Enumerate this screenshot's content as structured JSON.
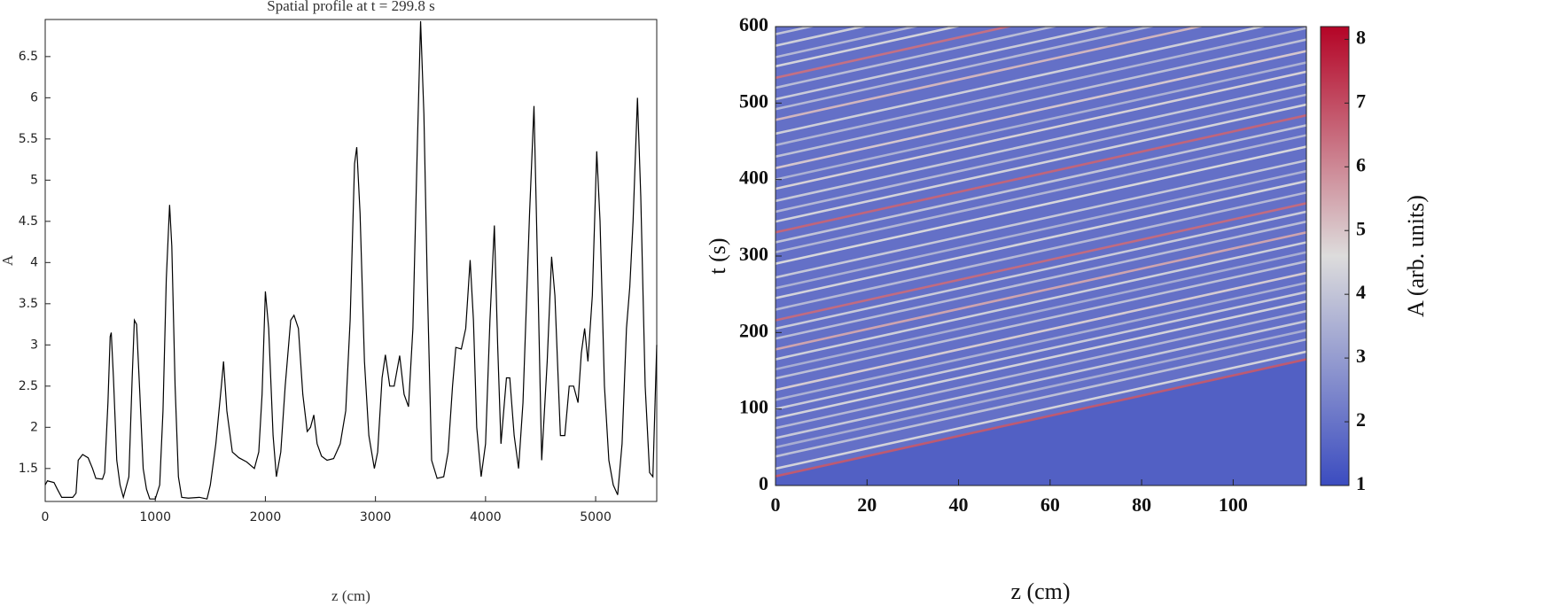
{
  "chart_data": [
    {
      "type": "line",
      "title": "Spatial profile at t = 299.8 s",
      "x_label": "z (cm)",
      "y_label": "A",
      "color": "#000000",
      "x": [
        0,
        20,
        80,
        110,
        150,
        250,
        280,
        300,
        340,
        390,
        430,
        460,
        520,
        540,
        570,
        590,
        600,
        620,
        650,
        680,
        710,
        760,
        790,
        810,
        830,
        860,
        890,
        920,
        950,
        1000,
        1040,
        1070,
        1100,
        1130,
        1150,
        1180,
        1210,
        1240,
        1300,
        1400,
        1470,
        1500,
        1550,
        1600,
        1620,
        1650,
        1700,
        1760,
        1830,
        1900,
        1940,
        1970,
        2000,
        2030,
        2070,
        2100,
        2140,
        2180,
        2230,
        2260,
        2300,
        2340,
        2380,
        2410,
        2440,
        2470,
        2510,
        2560,
        2620,
        2680,
        2730,
        2770,
        2810,
        2830,
        2860,
        2900,
        2940,
        2990,
        3020,
        3060,
        3090,
        3130,
        3170,
        3220,
        3260,
        3300,
        3340,
        3380,
        3410,
        3440,
        3470,
        3510,
        3560,
        3620,
        3660,
        3700,
        3730,
        3780,
        3820,
        3860,
        3890,
        3920,
        3960,
        4000,
        4040,
        4080,
        4110,
        4140,
        4190,
        4220,
        4260,
        4300,
        4340,
        4400,
        4440,
        4480,
        4510,
        4560,
        4600,
        4630,
        4680,
        4720,
        4760,
        4800,
        4840,
        4870,
        4900,
        4930,
        4970,
        5010,
        5040,
        5080,
        5120,
        5160,
        5200,
        5240,
        5280,
        5310,
        5340,
        5380,
        5410,
        5450,
        5490,
        5520,
        5555
      ],
      "values": [
        1.3,
        1.35,
        1.33,
        1.25,
        1.15,
        1.15,
        1.2,
        1.6,
        1.67,
        1.63,
        1.5,
        1.38,
        1.37,
        1.45,
        2.3,
        3.1,
        3.15,
        2.6,
        1.6,
        1.3,
        1.15,
        1.4,
        2.6,
        3.3,
        3.25,
        2.4,
        1.5,
        1.25,
        1.13,
        1.13,
        1.3,
        2.2,
        3.8,
        4.7,
        4.2,
        2.5,
        1.4,
        1.15,
        1.14,
        1.15,
        1.13,
        1.3,
        1.8,
        2.5,
        2.8,
        2.2,
        1.7,
        1.63,
        1.58,
        1.5,
        1.7,
        2.4,
        3.65,
        3.2,
        1.9,
        1.4,
        1.7,
        2.5,
        3.3,
        3.36,
        3.2,
        2.4,
        1.95,
        2.0,
        2.15,
        1.8,
        1.65,
        1.6,
        1.62,
        1.8,
        2.2,
        3.3,
        5.2,
        5.4,
        4.6,
        2.8,
        1.9,
        1.5,
        1.7,
        2.6,
        2.88,
        2.5,
        2.5,
        2.87,
        2.4,
        2.25,
        3.2,
        5.4,
        6.93,
        5.8,
        3.8,
        1.6,
        1.38,
        1.4,
        1.7,
        2.5,
        2.97,
        2.95,
        3.2,
        4.03,
        3.3,
        2.0,
        1.4,
        1.8,
        3.3,
        4.45,
        3.0,
        1.8,
        2.6,
        2.6,
        1.9,
        1.5,
        2.3,
        4.6,
        5.9,
        3.5,
        1.6,
        2.8,
        4.07,
        3.6,
        1.9,
        1.9,
        2.5,
        2.5,
        2.3,
        2.9,
        3.2,
        2.8,
        3.6,
        5.35,
        4.5,
        2.5,
        1.6,
        1.3,
        1.18,
        1.8,
        3.2,
        3.7,
        4.5,
        6.0,
        4.8,
        2.5,
        1.45,
        1.4,
        3.0
      ],
      "xlim": [
        0,
        5555
      ],
      "ylim": [
        1.1,
        6.95
      ],
      "xticks": [
        0,
        1000,
        2000,
        3000,
        4000,
        5000
      ],
      "yticks": [
        1.5,
        2,
        2.5,
        3,
        3.5,
        4,
        4.5,
        5,
        5.5,
        6,
        6.5
      ]
    },
    {
      "type": "heatmap",
      "x_label": "z (cm)",
      "y_label": "t (s)",
      "colorbar_label": "A (arb. units)",
      "xlim": [
        0,
        116
      ],
      "ylim": [
        0,
        600
      ],
      "xticks": [
        0,
        20,
        40,
        60,
        80,
        100
      ],
      "yticks": [
        0,
        100,
        200,
        300,
        400,
        500,
        600
      ],
      "clim": [
        1,
        8.2
      ],
      "cticks": [
        1,
        2,
        3,
        4,
        5,
        6,
        7,
        8
      ],
      "colormap": [
        "#3b4cc0",
        "#dddcdc",
        "#b40426"
      ],
      "background": 1.5,
      "upper_A": 1.9,
      "streaks": [
        [
          12,
          165,
          6.8
        ],
        [
          22,
          175,
          4.5
        ],
        [
          38,
          191,
          4
        ],
        [
          50,
          203,
          3.5
        ],
        [
          62,
          215,
          4.2
        ],
        [
          75,
          228,
          3.8
        ],
        [
          88,
          241,
          4.5
        ],
        [
          100,
          253,
          4.3
        ],
        [
          112,
          265,
          3.6
        ],
        [
          125,
          278,
          4.8
        ],
        [
          140,
          293,
          4
        ],
        [
          152,
          305,
          3.5
        ],
        [
          165,
          318,
          4.4
        ],
        [
          178,
          331,
          5.5
        ],
        [
          192,
          345,
          3.9
        ],
        [
          205,
          358,
          4.3
        ],
        [
          216,
          369,
          6.5
        ],
        [
          230,
          383,
          3.8
        ],
        [
          245,
          398,
          4.5
        ],
        [
          258,
          411,
          3.6
        ],
        [
          272,
          425,
          4.2
        ],
        [
          290,
          443,
          4.6
        ],
        [
          305,
          458,
          3.7
        ],
        [
          318,
          471,
          4.1
        ],
        [
          331,
          484,
          6.6
        ],
        [
          345,
          498,
          4.5
        ],
        [
          358,
          511,
          3.8
        ],
        [
          372,
          525,
          4.2
        ],
        [
          388,
          541,
          4.7
        ],
        [
          400,
          553,
          3.6
        ],
        [
          415,
          568,
          4.9
        ],
        [
          430,
          583,
          4
        ],
        [
          445,
          598,
          3.7
        ],
        [
          460,
          613,
          4.4
        ],
        [
          478,
          631,
          5.2
        ],
        [
          492,
          645,
          3.8
        ],
        [
          505,
          658,
          4.3
        ],
        [
          520,
          673,
          3.9
        ],
        [
          533,
          686,
          6.4
        ],
        [
          548,
          701,
          4.5
        ],
        [
          560,
          713,
          3.8
        ],
        [
          575,
          728,
          4.4
        ],
        [
          590,
          743,
          4.1
        ]
      ]
    }
  ]
}
